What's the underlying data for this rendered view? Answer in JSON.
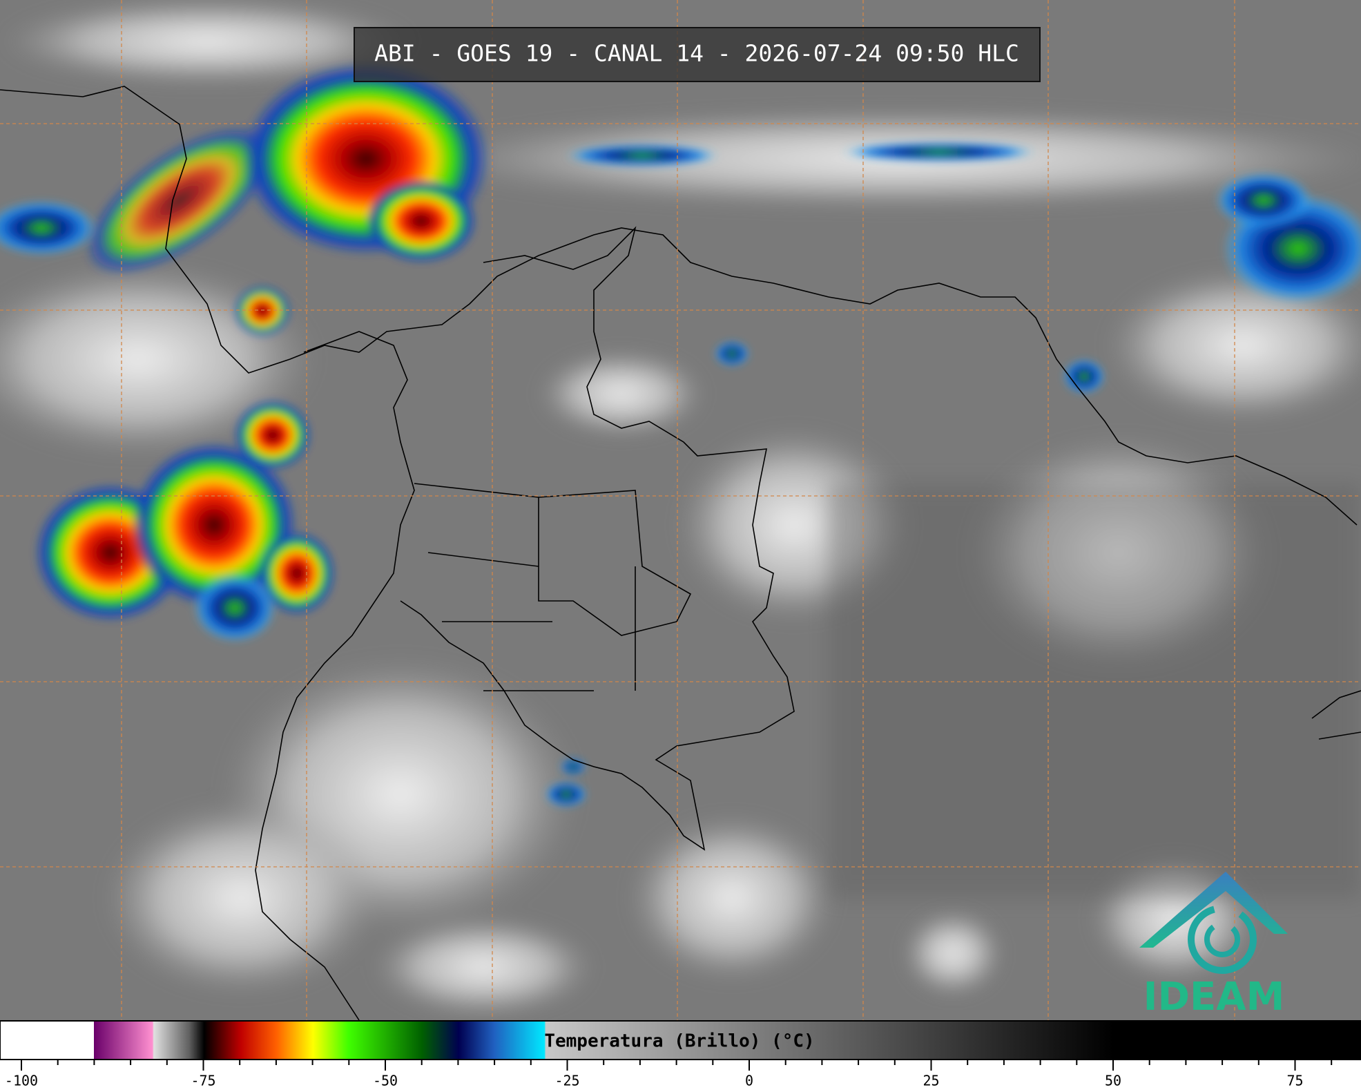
{
  "header": {
    "title": "ABI - GOES 19 - CANAL 14 - 2026-07-24 09:50 HLC"
  },
  "colorbar": {
    "label": "Temperatura (Brillo) (°C)",
    "ticks": [
      -100,
      -75,
      -50,
      -25,
      0,
      25,
      50,
      75
    ]
  },
  "logo": {
    "text": "IDEAM"
  }
}
